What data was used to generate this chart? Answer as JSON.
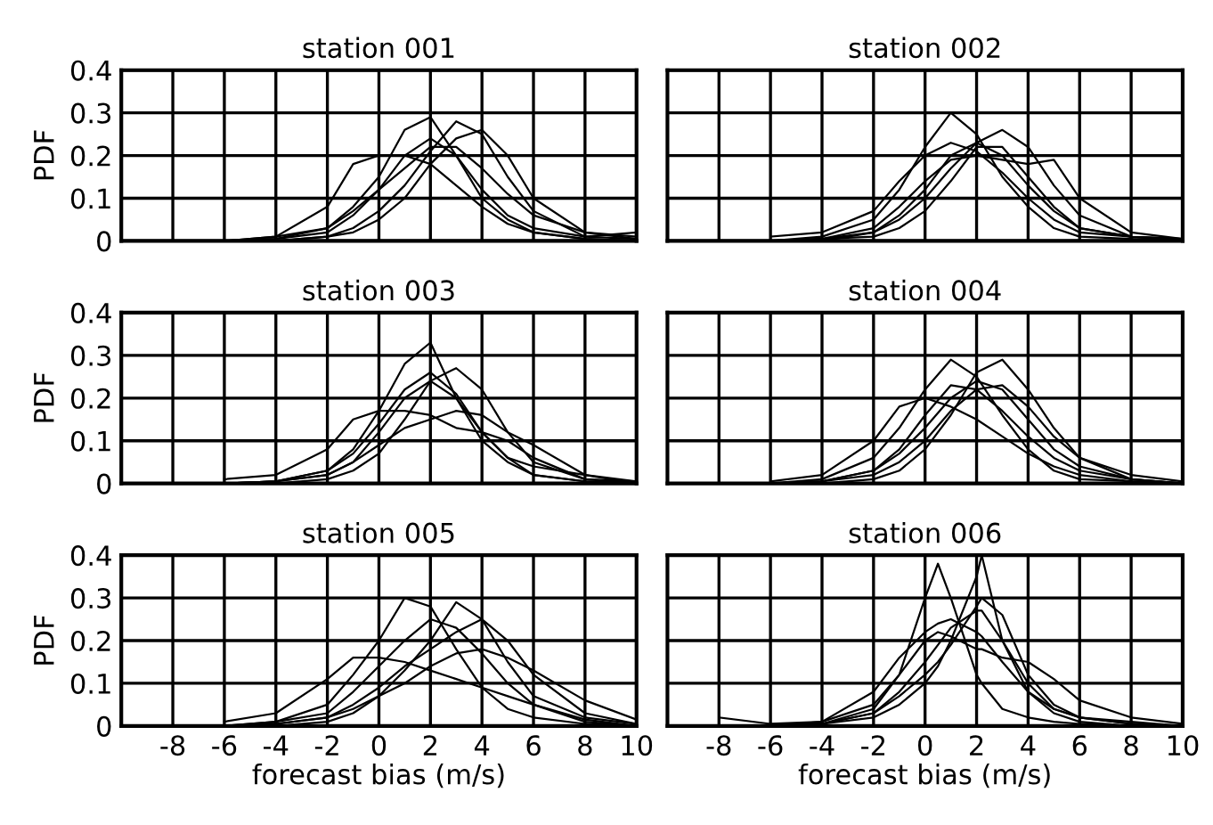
{
  "chart_data": [
    {
      "type": "line",
      "title": "station 001",
      "ylabel": "PDF",
      "xlim": [
        -10,
        10
      ],
      "xticks": [
        -8,
        -6,
        -4,
        -2,
        0,
        2,
        4,
        6,
        8,
        10
      ],
      "ylim": [
        0,
        0.4
      ],
      "yticks": [
        0,
        0.1,
        0.2,
        0.3,
        0.4
      ],
      "grid": true,
      "tick_labels": "y",
      "x": [
        -6,
        -4,
        -2,
        -1,
        0,
        1,
        2,
        3,
        4,
        5,
        6,
        8,
        10
      ],
      "series": [
        {
          "color": "#000000",
          "values": [
            0,
            0.005,
            0.03,
            0.08,
            0.15,
            0.26,
            0.29,
            0.2,
            0.1,
            0.05,
            0.02,
            0.005,
            0
          ]
        },
        {
          "color": "#000000",
          "values": [
            0,
            0,
            0.01,
            0.03,
            0.07,
            0.13,
            0.21,
            0.28,
            0.25,
            0.15,
            0.07,
            0.01,
            0.005
          ]
        },
        {
          "color": "#000000",
          "values": [
            0,
            0.01,
            0.08,
            0.18,
            0.2,
            0.2,
            0.18,
            0.13,
            0.08,
            0.04,
            0.02,
            0.005,
            0
          ]
        },
        {
          "color": "#000000",
          "values": [
            0,
            0.005,
            0.02,
            0.06,
            0.12,
            0.2,
            0.24,
            0.2,
            0.12,
            0.06,
            0.03,
            0.01,
            0.02
          ]
        },
        {
          "color": "#000000",
          "values": [
            0,
            0,
            0.01,
            0.02,
            0.05,
            0.1,
            0.18,
            0.24,
            0.26,
            0.2,
            0.1,
            0.02,
            0.005
          ]
        },
        {
          "color": "#000000",
          "values": [
            0,
            0.01,
            0.03,
            0.07,
            0.12,
            0.17,
            0.22,
            0.22,
            0.17,
            0.11,
            0.06,
            0.02,
            0.01
          ]
        }
      ]
    },
    {
      "type": "line",
      "title": "station 002",
      "xlim": [
        -10,
        10
      ],
      "xticks": [
        -8,
        -6,
        -4,
        -2,
        0,
        2,
        4,
        6,
        8,
        10
      ],
      "ylim": [
        0,
        0.4
      ],
      "yticks": [
        0,
        0.1,
        0.2,
        0.3,
        0.4
      ],
      "grid": true,
      "tick_labels": false,
      "x": [
        -6,
        -4,
        -2,
        -1,
        0,
        1,
        2,
        3,
        4,
        5,
        6,
        8,
        10
      ],
      "series": [
        {
          "color": "#000000",
          "values": [
            0,
            0.01,
            0.05,
            0.12,
            0.22,
            0.3,
            0.25,
            0.15,
            0.08,
            0.03,
            0.01,
            0.005,
            0
          ]
        },
        {
          "color": "#000000",
          "values": [
            0,
            0,
            0.02,
            0.05,
            0.1,
            0.17,
            0.23,
            0.26,
            0.22,
            0.13,
            0.06,
            0.01,
            0.005
          ]
        },
        {
          "color": "#000000",
          "values": [
            0,
            0.005,
            0.03,
            0.08,
            0.14,
            0.19,
            0.2,
            0.19,
            0.18,
            0.19,
            0.1,
            0.02,
            0.005
          ]
        },
        {
          "color": "#000000",
          "values": [
            0.01,
            0.02,
            0.07,
            0.14,
            0.2,
            0.23,
            0.21,
            0.16,
            0.1,
            0.05,
            0.02,
            0.01,
            0.005
          ]
        },
        {
          "color": "#000000",
          "values": [
            0,
            0.005,
            0.02,
            0.06,
            0.12,
            0.2,
            0.23,
            0.2,
            0.13,
            0.07,
            0.03,
            0.01,
            0
          ]
        },
        {
          "color": "#000000",
          "values": [
            0,
            0.005,
            0.01,
            0.03,
            0.07,
            0.14,
            0.22,
            0.22,
            0.15,
            0.08,
            0.03,
            0.01,
            0
          ]
        }
      ]
    },
    {
      "type": "line",
      "title": "station 003",
      "ylabel": "PDF",
      "xlim": [
        -10,
        10
      ],
      "xticks": [
        -8,
        -6,
        -4,
        -2,
        0,
        2,
        4,
        6,
        8,
        10
      ],
      "ylim": [
        0,
        0.4
      ],
      "yticks": [
        0,
        0.1,
        0.2,
        0.3,
        0.4
      ],
      "grid": true,
      "tick_labels": "y",
      "x": [
        -6,
        -4,
        -2,
        -1,
        0,
        1,
        2,
        3,
        4,
        5,
        6,
        8,
        10
      ],
      "series": [
        {
          "color": "#000000",
          "values": [
            0,
            0.005,
            0.03,
            0.08,
            0.17,
            0.28,
            0.33,
            0.2,
            0.1,
            0.05,
            0.02,
            0.005,
            0
          ]
        },
        {
          "color": "#000000",
          "values": [
            0,
            0,
            0.01,
            0.03,
            0.07,
            0.15,
            0.24,
            0.27,
            0.22,
            0.12,
            0.05,
            0.01,
            0
          ]
        },
        {
          "color": "#000000",
          "values": [
            0.01,
            0.02,
            0.08,
            0.15,
            0.17,
            0.17,
            0.16,
            0.13,
            0.12,
            0.1,
            0.06,
            0.01,
            0.005
          ]
        },
        {
          "color": "#000000",
          "values": [
            0,
            0.005,
            0.02,
            0.05,
            0.12,
            0.2,
            0.24,
            0.2,
            0.12,
            0.06,
            0.04,
            0.02,
            0
          ]
        },
        {
          "color": "#000000",
          "values": [
            0,
            0.005,
            0.02,
            0.05,
            0.09,
            0.13,
            0.15,
            0.17,
            0.16,
            0.12,
            0.09,
            0.02,
            0.005
          ]
        },
        {
          "color": "#000000",
          "values": [
            0,
            0.005,
            0.03,
            0.07,
            0.14,
            0.22,
            0.26,
            0.21,
            0.12,
            0.06,
            0.02,
            0.005,
            0
          ]
        }
      ]
    },
    {
      "type": "line",
      "title": "station 004",
      "xlim": [
        -10,
        10
      ],
      "xticks": [
        -8,
        -6,
        -4,
        -2,
        0,
        2,
        4,
        6,
        8,
        10
      ],
      "ylim": [
        0,
        0.4
      ],
      "yticks": [
        0,
        0.1,
        0.2,
        0.3,
        0.4
      ],
      "grid": true,
      "tick_labels": false,
      "x": [
        -6,
        -4,
        -2,
        -1,
        0,
        1,
        2,
        3,
        4,
        5,
        6,
        8,
        10
      ],
      "series": [
        {
          "color": "#000000",
          "values": [
            0,
            0.01,
            0.06,
            0.13,
            0.22,
            0.29,
            0.25,
            0.16,
            0.08,
            0.03,
            0.01,
            0.005,
            0
          ]
        },
        {
          "color": "#000000",
          "values": [
            0,
            0,
            0.01,
            0.03,
            0.08,
            0.16,
            0.26,
            0.29,
            0.22,
            0.13,
            0.06,
            0.01,
            0
          ]
        },
        {
          "color": "#000000",
          "values": [
            0.005,
            0.02,
            0.1,
            0.18,
            0.2,
            0.18,
            0.15,
            0.11,
            0.07,
            0.04,
            0.02,
            0.005,
            0
          ]
        },
        {
          "color": "#000000",
          "values": [
            0,
            0.005,
            0.03,
            0.07,
            0.13,
            0.2,
            0.24,
            0.22,
            0.15,
            0.08,
            0.04,
            0.01,
            0
          ]
        },
        {
          "color": "#000000",
          "values": [
            0,
            0.005,
            0.02,
            0.05,
            0.1,
            0.17,
            0.22,
            0.23,
            0.18,
            0.11,
            0.06,
            0.02,
            0.005
          ]
        },
        {
          "color": "#000000",
          "values": [
            0,
            0.005,
            0.03,
            0.08,
            0.16,
            0.23,
            0.22,
            0.17,
            0.11,
            0.06,
            0.03,
            0.01,
            0
          ]
        }
      ]
    },
    {
      "type": "line",
      "title": "station 005",
      "xlabel": "forecast bias (m/s)",
      "ylabel": "PDF",
      "xlim": [
        -10,
        10
      ],
      "xticks": [
        -8,
        -6,
        -4,
        -2,
        0,
        2,
        4,
        6,
        8,
        10
      ],
      "ylim": [
        0,
        0.4
      ],
      "yticks": [
        0,
        0.1,
        0.2,
        0.3,
        0.4
      ],
      "grid": true,
      "x": [
        -6,
        -4,
        -2,
        -1,
        0,
        1,
        2,
        3,
        4,
        5,
        6,
        8,
        10
      ],
      "series": [
        {
          "color": "#000000",
          "values": [
            0,
            0.01,
            0.05,
            0.12,
            0.2,
            0.3,
            0.28,
            0.18,
            0.09,
            0.04,
            0.02,
            0.005,
            0
          ]
        },
        {
          "color": "#000000",
          "values": [
            0,
            0,
            0.01,
            0.03,
            0.07,
            0.13,
            0.2,
            0.29,
            0.25,
            0.15,
            0.07,
            0.02,
            0.005
          ]
        },
        {
          "color": "#000000",
          "values": [
            0.01,
            0.03,
            0.11,
            0.16,
            0.16,
            0.15,
            0.13,
            0.11,
            0.09,
            0.07,
            0.05,
            0.015,
            0
          ]
        },
        {
          "color": "#000000",
          "values": [
            0,
            0.005,
            0.02,
            0.05,
            0.09,
            0.14,
            0.18,
            0.22,
            0.25,
            0.2,
            0.12,
            0.03,
            0.005
          ]
        },
        {
          "color": "#000000",
          "values": [
            0,
            0.01,
            0.03,
            0.08,
            0.14,
            0.2,
            0.25,
            0.23,
            0.17,
            0.1,
            0.05,
            0.01,
            0
          ]
        },
        {
          "color": "#000000",
          "values": [
            0,
            0.005,
            0.02,
            0.04,
            0.07,
            0.1,
            0.14,
            0.17,
            0.18,
            0.16,
            0.13,
            0.06,
            0.015
          ]
        }
      ]
    },
    {
      "type": "line",
      "title": "station 006",
      "xlabel": "forecast bias (m/s)",
      "xlim": [
        -10,
        10
      ],
      "xticks": [
        -8,
        -6,
        -4,
        -2,
        0,
        2,
        4,
        6,
        8,
        10
      ],
      "ylim": [
        0,
        0.4
      ],
      "yticks": [
        0,
        0.1,
        0.2,
        0.3,
        0.4
      ],
      "grid": true,
      "tick_labels": "x",
      "x": [
        -8,
        -6,
        -4,
        -2,
        -1,
        0,
        0.5,
        1,
        2,
        2.2,
        3,
        4,
        5,
        6,
        8,
        10
      ],
      "series": [
        {
          "color": "#000000",
          "values": [
            0,
            0,
            0.005,
            0.04,
            0.12,
            0.3,
            0.38,
            0.3,
            0.12,
            0.1,
            0.04,
            0.02,
            0.01,
            0.005,
            0,
            0
          ]
        },
        {
          "color": "#000000",
          "values": [
            0,
            0,
            0.005,
            0.02,
            0.05,
            0.1,
            0.14,
            0.2,
            0.35,
            0.4,
            0.2,
            0.08,
            0.03,
            0.01,
            0,
            0
          ]
        },
        {
          "color": "#000000",
          "values": [
            0.02,
            0.005,
            0.01,
            0.08,
            0.16,
            0.22,
            0.24,
            0.25,
            0.22,
            0.21,
            0.15,
            0.08,
            0.04,
            0.02,
            0.01,
            0
          ]
        },
        {
          "color": "#000000",
          "values": [
            0,
            0,
            0.005,
            0.03,
            0.08,
            0.15,
            0.19,
            0.23,
            0.27,
            0.27,
            0.2,
            0.1,
            0.04,
            0.02,
            0.005,
            0
          ]
        },
        {
          "color": "#000000",
          "values": [
            0,
            0,
            0.01,
            0.05,
            0.12,
            0.2,
            0.22,
            0.21,
            0.18,
            0.18,
            0.16,
            0.15,
            0.11,
            0.06,
            0.02,
            0.005
          ]
        },
        {
          "color": "#000000",
          "values": [
            0,
            0,
            0.005,
            0.03,
            0.07,
            0.12,
            0.15,
            0.19,
            0.28,
            0.3,
            0.26,
            0.12,
            0.05,
            0.02,
            0.005,
            0
          ]
        }
      ]
    }
  ]
}
